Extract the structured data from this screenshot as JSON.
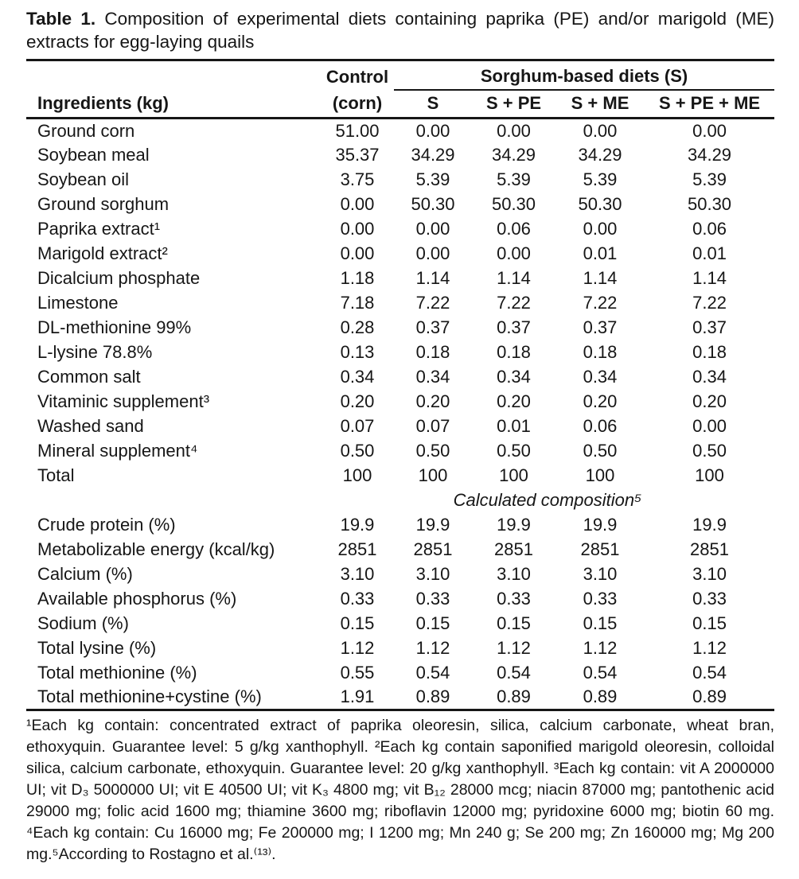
{
  "page": {
    "background_color": "#ffffff",
    "text_color": "#161616",
    "rule_color": "#161616"
  },
  "title": {
    "label": "Table 1.",
    "text": "Composition of experimental diets containing paprika (PE) and/or marigold (ME) extracts for egg-laying quails"
  },
  "table": {
    "ingredients_header": "Ingredients (kg)",
    "control_header": {
      "line1": "Control",
      "line2": "(corn)"
    },
    "spanner_header": "Sorghum-based diets (S)",
    "diet_columns": [
      "S",
      "S + PE",
      "S + ME",
      "S + PE + ME"
    ],
    "ingredient_rows": [
      {
        "name": "Ground corn",
        "values": [
          "51.00",
          "0.00",
          "0.00",
          "0.00",
          "0.00"
        ]
      },
      {
        "name": "Soybean meal",
        "values": [
          "35.37",
          "34.29",
          "34.29",
          "34.29",
          "34.29"
        ]
      },
      {
        "name": "Soybean oil",
        "values": [
          "3.75",
          "5.39",
          "5.39",
          "5.39",
          "5.39"
        ]
      },
      {
        "name": "Ground sorghum",
        "values": [
          "0.00",
          "50.30",
          "50.30",
          "50.30",
          "50.30"
        ]
      },
      {
        "name": "Paprika extract¹",
        "values": [
          "0.00",
          "0.00",
          "0.06",
          "0.00",
          "0.06"
        ]
      },
      {
        "name": "Marigold extract²",
        "values": [
          "0.00",
          "0.00",
          "0.00",
          "0.01",
          "0.01"
        ]
      },
      {
        "name": "Dicalcium phosphate",
        "values": [
          "1.18",
          "1.14",
          "1.14",
          "1.14",
          "1.14"
        ]
      },
      {
        "name": "Limestone",
        "values": [
          "7.18",
          "7.22",
          "7.22",
          "7.22",
          "7.22"
        ]
      },
      {
        "name": "DL-methionine 99%",
        "values": [
          "0.28",
          "0.37",
          "0.37",
          "0.37",
          "0.37"
        ]
      },
      {
        "name": "L-lysine 78.8%",
        "values": [
          "0.13",
          "0.18",
          "0.18",
          "0.18",
          "0.18"
        ]
      },
      {
        "name": "Common salt",
        "values": [
          "0.34",
          "0.34",
          "0.34",
          "0.34",
          "0.34"
        ]
      },
      {
        "name": "Vitaminic supplement³",
        "values": [
          "0.20",
          "0.20",
          "0.20",
          "0.20",
          "0.20"
        ]
      },
      {
        "name": "Washed sand",
        "values": [
          "0.07",
          "0.07",
          "0.01",
          "0.06",
          "0.00"
        ]
      },
      {
        "name": "Mineral supplement⁴",
        "values": [
          "0.50",
          "0.50",
          "0.50",
          "0.50",
          "0.50"
        ]
      },
      {
        "name": "Total",
        "values": [
          "100",
          "100",
          "100",
          "100",
          "100"
        ]
      }
    ],
    "section_divider": "Calculated composition⁵",
    "composition_rows": [
      {
        "name": "Crude protein (%)",
        "values": [
          "19.9",
          "19.9",
          "19.9",
          "19.9",
          "19.9"
        ]
      },
      {
        "name": "Metabolizable energy (kcal/kg)",
        "values": [
          "2851",
          "2851",
          "2851",
          "2851",
          "2851"
        ]
      },
      {
        "name": "Calcium (%)",
        "values": [
          "3.10",
          "3.10",
          "3.10",
          "3.10",
          "3.10"
        ]
      },
      {
        "name": "Available phosphorus (%)",
        "values": [
          "0.33",
          "0.33",
          "0.33",
          "0.33",
          "0.33"
        ]
      },
      {
        "name": "Sodium (%)",
        "values": [
          "0.15",
          "0.15",
          "0.15",
          "0.15",
          "0.15"
        ]
      },
      {
        "name": "Total lysine (%)",
        "values": [
          "1.12",
          "1.12",
          "1.12",
          "1.12",
          "1.12"
        ]
      },
      {
        "name": "Total methionine (%)",
        "values": [
          "0.55",
          "0.54",
          "0.54",
          "0.54",
          "0.54"
        ]
      },
      {
        "name": "Total methionine+cystine (%)",
        "values": [
          "1.91",
          "0.89",
          "0.89",
          "0.89",
          "0.89"
        ]
      }
    ]
  },
  "footnotes": {
    "text": "¹Each kg contain: concentrated extract of paprika oleoresin, silica, calcium carbonate, wheat bran, ethoxyquin. Guarantee level: 5 g/kg xanthophyll. ²Each kg contain saponified marigold oleoresin, colloidal silica, calcium carbonate, ethoxyquin. Guarantee level: 20 g/kg xanthophyll. ³Each kg contain: vit A 2000000 UI; vit D₃ 5000000 UI; vit E 40500 UI; vit K₃ 4800 mg; vit B₁₂ 28000 mcg; niacin 87000 mg; pantothenic acid 29000 mg; folic acid 1600 mg; thiamine 3600 mg; riboflavin 12000 mg; pyridoxine 6000 mg; biotin 60 mg. ⁴Each kg contain: Cu 16000 mg; Fe 200000 mg; I 1200 mg; Mn 240 g; Se 200 mg; Zn 160000 mg; Mg 200 mg.⁵According to Rostagno et al.⁽¹³⁾."
  }
}
